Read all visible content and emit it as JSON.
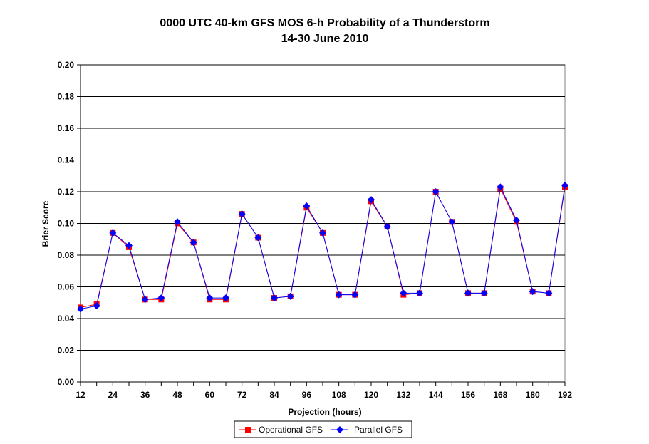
{
  "chart_data": {
    "type": "line",
    "title": "0000 UTC 40-km GFS MOS 6-h Probability of a Thunderstorm",
    "subtitle": "14-30 June 2010",
    "xlabel": "Projection (hours)",
    "ylabel": "Brier Score",
    "x": [
      12,
      18,
      24,
      30,
      36,
      42,
      48,
      54,
      60,
      66,
      72,
      78,
      84,
      90,
      96,
      102,
      108,
      114,
      120,
      126,
      132,
      138,
      144,
      150,
      156,
      162,
      168,
      174,
      180,
      186,
      192
    ],
    "x_tick_labels": [
      "12",
      "24",
      "36",
      "48",
      "60",
      "72",
      "84",
      "96",
      "108",
      "120",
      "132",
      "144",
      "156",
      "168",
      "180",
      "192"
    ],
    "x_tick_values": [
      12,
      24,
      36,
      48,
      60,
      72,
      84,
      96,
      108,
      120,
      132,
      144,
      156,
      168,
      180,
      192
    ],
    "xlim": [
      12,
      192
    ],
    "ylim": [
      0,
      0.2
    ],
    "y_tick_labels": [
      "0.00",
      "0.02",
      "0.04",
      "0.06",
      "0.08",
      "0.10",
      "0.12",
      "0.14",
      "0.16",
      "0.18",
      "0.20"
    ],
    "y_tick_values": [
      0,
      0.02,
      0.04,
      0.06,
      0.08,
      0.1,
      0.12,
      0.14,
      0.16,
      0.18,
      0.2
    ],
    "grid": "horizontal",
    "legend_position": "bottom",
    "series": [
      {
        "name": "Operational GFS",
        "color": "#ff0000",
        "marker": "square",
        "values": [
          0.047,
          0.049,
          0.094,
          0.085,
          0.052,
          0.052,
          0.1,
          0.088,
          0.052,
          0.052,
          0.106,
          0.091,
          0.053,
          0.054,
          0.11,
          0.094,
          0.055,
          0.055,
          0.114,
          0.098,
          0.055,
          0.056,
          0.12,
          0.101,
          0.056,
          0.056,
          0.122,
          0.101,
          0.057,
          0.056,
          0.123
        ]
      },
      {
        "name": "Parallel GFS",
        "color": "#0000ff",
        "marker": "diamond",
        "values": [
          0.046,
          0.048,
          0.094,
          0.086,
          0.052,
          0.053,
          0.101,
          0.088,
          0.053,
          0.053,
          0.106,
          0.091,
          0.053,
          0.054,
          0.111,
          0.094,
          0.055,
          0.055,
          0.115,
          0.098,
          0.056,
          0.056,
          0.12,
          0.101,
          0.056,
          0.056,
          0.123,
          0.102,
          0.057,
          0.056,
          0.124
        ]
      }
    ]
  }
}
